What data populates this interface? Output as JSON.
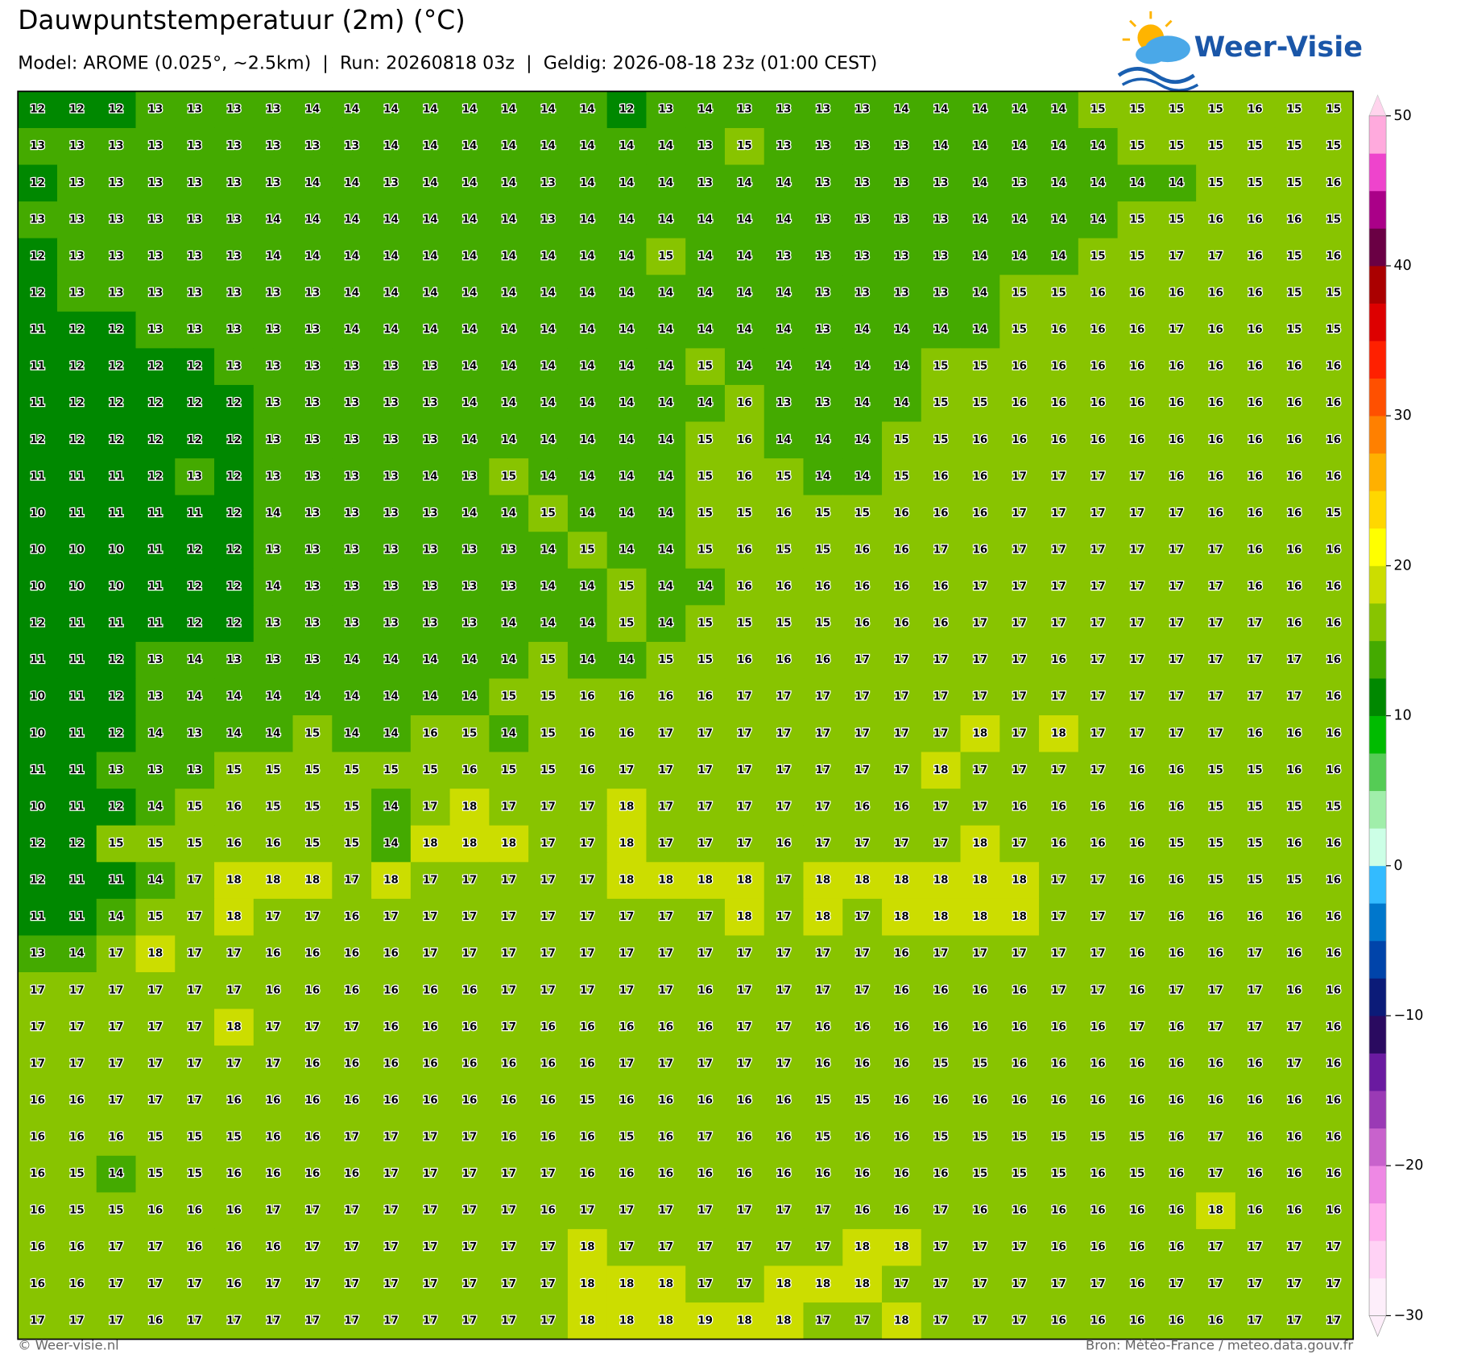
{
  "chart_data": {
    "type": "heatmap",
    "title": "Dauwpuntstemperatuur (2m) (°C)",
    "subtitle": "Model: AROME (0.025°, ~2.5km)  |  Run: 20260818 03z  |  Geldig: 2026-08-18 23z (01:00 CEST)",
    "values": [
      [
        12,
        12,
        12,
        13,
        13,
        13,
        13,
        14,
        14,
        14,
        14,
        14,
        14,
        14,
        14,
        12,
        13,
        14,
        13,
        13,
        13,
        13,
        14,
        14,
        14,
        14,
        14,
        15,
        15,
        15,
        15,
        16,
        15,
        15
      ],
      [
        13,
        13,
        13,
        13,
        13,
        13,
        13,
        13,
        13,
        14,
        14,
        14,
        14,
        14,
        14,
        14,
        14,
        13,
        15,
        13,
        13,
        13,
        13,
        14,
        14,
        14,
        14,
        14,
        15,
        15,
        15,
        15,
        15,
        15
      ],
      [
        12,
        13,
        13,
        13,
        13,
        13,
        13,
        14,
        14,
        13,
        14,
        14,
        14,
        13,
        14,
        14,
        14,
        13,
        14,
        14,
        13,
        13,
        13,
        13,
        14,
        13,
        14,
        14,
        14,
        14,
        15,
        15,
        15,
        16
      ],
      [
        13,
        13,
        13,
        13,
        13,
        13,
        14,
        14,
        14,
        14,
        14,
        14,
        14,
        13,
        14,
        14,
        14,
        14,
        14,
        14,
        13,
        13,
        13,
        13,
        14,
        14,
        14,
        14,
        15,
        15,
        16,
        16,
        16,
        15
      ],
      [
        12,
        13,
        13,
        13,
        13,
        13,
        14,
        14,
        14,
        14,
        14,
        14,
        14,
        14,
        14,
        14,
        15,
        14,
        14,
        13,
        13,
        13,
        13,
        13,
        14,
        14,
        14,
        15,
        15,
        17,
        17,
        16,
        15,
        16
      ],
      [
        12,
        13,
        13,
        13,
        13,
        13,
        13,
        13,
        14,
        14,
        14,
        14,
        14,
        14,
        14,
        14,
        14,
        14,
        14,
        14,
        13,
        13,
        13,
        13,
        14,
        15,
        15,
        16,
        16,
        16,
        16,
        16,
        15,
        15
      ],
      [
        11,
        12,
        12,
        13,
        13,
        13,
        13,
        13,
        14,
        14,
        14,
        14,
        14,
        14,
        14,
        14,
        14,
        14,
        14,
        14,
        13,
        14,
        14,
        14,
        14,
        15,
        16,
        16,
        16,
        17,
        16,
        16,
        15,
        15
      ],
      [
        11,
        12,
        12,
        12,
        12,
        13,
        13,
        13,
        13,
        13,
        13,
        14,
        14,
        14,
        14,
        14,
        14,
        15,
        14,
        14,
        14,
        14,
        14,
        15,
        15,
        16,
        16,
        16,
        16,
        16,
        16,
        16,
        16,
        16
      ],
      [
        11,
        12,
        12,
        12,
        12,
        12,
        13,
        13,
        13,
        13,
        13,
        14,
        14,
        14,
        14,
        14,
        14,
        14,
        16,
        13,
        13,
        14,
        14,
        15,
        15,
        16,
        16,
        16,
        16,
        16,
        16,
        16,
        16,
        16
      ],
      [
        12,
        12,
        12,
        12,
        12,
        12,
        13,
        13,
        13,
        13,
        13,
        14,
        14,
        14,
        14,
        14,
        14,
        15,
        16,
        14,
        14,
        14,
        15,
        15,
        16,
        16,
        16,
        16,
        16,
        16,
        16,
        16,
        16,
        16
      ],
      [
        11,
        11,
        11,
        12,
        13,
        12,
        13,
        13,
        13,
        13,
        14,
        13,
        15,
        14,
        14,
        14,
        14,
        15,
        16,
        15,
        14,
        14,
        15,
        16,
        16,
        17,
        17,
        17,
        17,
        16,
        16,
        16,
        16,
        16
      ],
      [
        10,
        11,
        11,
        11,
        11,
        12,
        14,
        13,
        13,
        13,
        13,
        14,
        14,
        15,
        14,
        14,
        14,
        15,
        15,
        16,
        15,
        15,
        16,
        16,
        16,
        17,
        17,
        17,
        17,
        17,
        16,
        16,
        16,
        15
      ],
      [
        10,
        10,
        10,
        11,
        12,
        12,
        13,
        13,
        13,
        13,
        13,
        13,
        13,
        14,
        15,
        14,
        14,
        15,
        16,
        15,
        15,
        16,
        16,
        17,
        16,
        17,
        17,
        17,
        17,
        17,
        17,
        16,
        16,
        16
      ],
      [
        10,
        10,
        10,
        11,
        12,
        12,
        14,
        13,
        13,
        13,
        13,
        13,
        13,
        14,
        14,
        15,
        14,
        14,
        16,
        16,
        16,
        16,
        16,
        16,
        17,
        17,
        17,
        17,
        17,
        17,
        17,
        16,
        16,
        16
      ],
      [
        12,
        11,
        11,
        11,
        12,
        12,
        13,
        13,
        13,
        13,
        13,
        13,
        14,
        14,
        14,
        15,
        14,
        15,
        15,
        15,
        15,
        16,
        16,
        16,
        17,
        17,
        17,
        17,
        17,
        17,
        17,
        17,
        16,
        16
      ],
      [
        11,
        11,
        12,
        13,
        14,
        13,
        13,
        13,
        14,
        14,
        14,
        14,
        14,
        15,
        14,
        14,
        15,
        15,
        16,
        16,
        16,
        17,
        17,
        17,
        17,
        17,
        16,
        17,
        17,
        17,
        17,
        17,
        17,
        16
      ],
      [
        10,
        11,
        12,
        13,
        14,
        14,
        14,
        14,
        14,
        14,
        14,
        14,
        15,
        15,
        16,
        16,
        16,
        16,
        17,
        17,
        17,
        17,
        17,
        17,
        17,
        17,
        17,
        17,
        17,
        17,
        17,
        17,
        17,
        16
      ],
      [
        10,
        11,
        12,
        14,
        13,
        14,
        14,
        15,
        14,
        14,
        16,
        15,
        14,
        15,
        16,
        16,
        17,
        17,
        17,
        17,
        17,
        17,
        17,
        17,
        18,
        17,
        18,
        17,
        17,
        17,
        17,
        16,
        16,
        16
      ],
      [
        11,
        11,
        13,
        13,
        13,
        15,
        15,
        15,
        15,
        15,
        15,
        16,
        15,
        15,
        16,
        17,
        17,
        17,
        17,
        17,
        17,
        17,
        17,
        18,
        17,
        17,
        17,
        17,
        16,
        16,
        15,
        15,
        16,
        16
      ],
      [
        10,
        11,
        12,
        14,
        15,
        16,
        15,
        15,
        15,
        14,
        17,
        18,
        17,
        17,
        17,
        18,
        17,
        17,
        17,
        17,
        17,
        16,
        16,
        17,
        17,
        16,
        16,
        16,
        16,
        16,
        15,
        15,
        15,
        15
      ],
      [
        12,
        12,
        15,
        15,
        15,
        16,
        16,
        15,
        15,
        14,
        18,
        18,
        18,
        17,
        17,
        18,
        17,
        17,
        17,
        16,
        17,
        17,
        17,
        17,
        18,
        17,
        16,
        16,
        16,
        15,
        15,
        15,
        16,
        16
      ],
      [
        12,
        11,
        11,
        14,
        17,
        18,
        18,
        18,
        17,
        18,
        17,
        17,
        17,
        17,
        17,
        18,
        18,
        18,
        18,
        17,
        18,
        18,
        18,
        18,
        18,
        18,
        17,
        17,
        16,
        16,
        15,
        15,
        15,
        16
      ],
      [
        11,
        11,
        14,
        15,
        17,
        18,
        17,
        17,
        16,
        17,
        17,
        17,
        17,
        17,
        17,
        17,
        17,
        17,
        18,
        17,
        18,
        17,
        18,
        18,
        18,
        18,
        17,
        17,
        17,
        16,
        16,
        16,
        16,
        16
      ],
      [
        13,
        14,
        17,
        18,
        17,
        17,
        16,
        16,
        16,
        16,
        17,
        17,
        17,
        17,
        17,
        17,
        17,
        17,
        17,
        17,
        17,
        17,
        16,
        17,
        17,
        17,
        17,
        17,
        16,
        16,
        16,
        17,
        16,
        16
      ],
      [
        17,
        17,
        17,
        17,
        17,
        17,
        16,
        16,
        16,
        16,
        16,
        16,
        17,
        17,
        17,
        17,
        17,
        16,
        17,
        17,
        17,
        17,
        16,
        16,
        16,
        16,
        17,
        17,
        16,
        17,
        17,
        17,
        16,
        16
      ],
      [
        17,
        17,
        17,
        17,
        17,
        18,
        17,
        17,
        17,
        16,
        16,
        16,
        17,
        16,
        16,
        16,
        16,
        16,
        17,
        17,
        16,
        16,
        16,
        16,
        16,
        16,
        16,
        16,
        17,
        16,
        17,
        17,
        17,
        16
      ],
      [
        17,
        17,
        17,
        17,
        17,
        17,
        17,
        16,
        16,
        16,
        16,
        16,
        16,
        16,
        16,
        17,
        17,
        17,
        17,
        17,
        16,
        16,
        16,
        15,
        15,
        16,
        16,
        16,
        16,
        16,
        16,
        16,
        17,
        16
      ],
      [
        16,
        16,
        17,
        17,
        17,
        16,
        16,
        16,
        16,
        16,
        16,
        16,
        16,
        16,
        15,
        16,
        16,
        16,
        16,
        16,
        15,
        15,
        16,
        16,
        16,
        16,
        16,
        16,
        16,
        16,
        16,
        16,
        16,
        16
      ],
      [
        16,
        16,
        16,
        15,
        15,
        15,
        16,
        16,
        17,
        17,
        17,
        17,
        16,
        16,
        16,
        15,
        16,
        17,
        16,
        16,
        15,
        16,
        16,
        15,
        15,
        15,
        15,
        15,
        15,
        16,
        17,
        16,
        16,
        16
      ],
      [
        16,
        15,
        14,
        15,
        15,
        16,
        16,
        16,
        16,
        17,
        17,
        17,
        17,
        17,
        16,
        16,
        16,
        16,
        16,
        16,
        16,
        16,
        16,
        16,
        15,
        15,
        15,
        16,
        15,
        16,
        17,
        16,
        16,
        16
      ],
      [
        16,
        15,
        15,
        16,
        16,
        16,
        17,
        17,
        17,
        17,
        17,
        17,
        17,
        16,
        17,
        17,
        17,
        17,
        17,
        17,
        17,
        16,
        16,
        17,
        16,
        16,
        16,
        16,
        16,
        16,
        18,
        16,
        16,
        16
      ],
      [
        16,
        16,
        17,
        17,
        16,
        16,
        16,
        17,
        17,
        17,
        17,
        17,
        17,
        17,
        18,
        17,
        17,
        17,
        17,
        17,
        17,
        18,
        18,
        17,
        17,
        17,
        16,
        16,
        16,
        16,
        17,
        17,
        17,
        17
      ],
      [
        16,
        16,
        17,
        17,
        17,
        16,
        17,
        17,
        17,
        17,
        17,
        17,
        17,
        17,
        18,
        18,
        18,
        17,
        17,
        18,
        18,
        18,
        17,
        17,
        17,
        17,
        17,
        17,
        16,
        17,
        17,
        17,
        17,
        17
      ],
      [
        17,
        17,
        17,
        16,
        17,
        17,
        17,
        17,
        17,
        17,
        17,
        17,
        17,
        17,
        18,
        18,
        18,
        19,
        18,
        18,
        17,
        17,
        18,
        17,
        17,
        17,
        16,
        16,
        16,
        16,
        16,
        17,
        17,
        17
      ]
    ],
    "colorbar": {
      "lim": [
        -30,
        50
      ],
      "ticks": [
        50,
        40,
        30,
        20,
        10,
        0,
        {
          "value": -10,
          "label": "−10"
        },
        {
          "value": -20,
          "label": "−20"
        },
        {
          "value": -30,
          "label": "−30"
        }
      ],
      "colors": [
        "#fdeefa",
        "#ffd2f5",
        "#ffb0ee",
        "#ee88e4",
        "#c862cc",
        "#9a3ab5",
        "#6a1aa0",
        "#2a0a60",
        "#0b1b78",
        "#0044aa",
        "#0077cc",
        "#33bbff",
        "#ccffe6",
        "#a0eeaa",
        "#55cc55",
        "#00bb00",
        "#008800",
        "#44aa00",
        "#88c400",
        "#ccdd00",
        "#ffff00",
        "#ffd700",
        "#ffb000",
        "#ff8000",
        "#ff5000",
        "#ff2000",
        "#dd0000",
        "#aa0000",
        "#6a0044",
        "#aa0088",
        "#ee44cc",
        "#ffaadd"
      ]
    }
  },
  "logo": {
    "text": "Weer-Visie"
  },
  "footer": {
    "left": "© Weer-visie.nl",
    "right": "Bron: Météo-France / meteo.data.gouv.fr"
  }
}
